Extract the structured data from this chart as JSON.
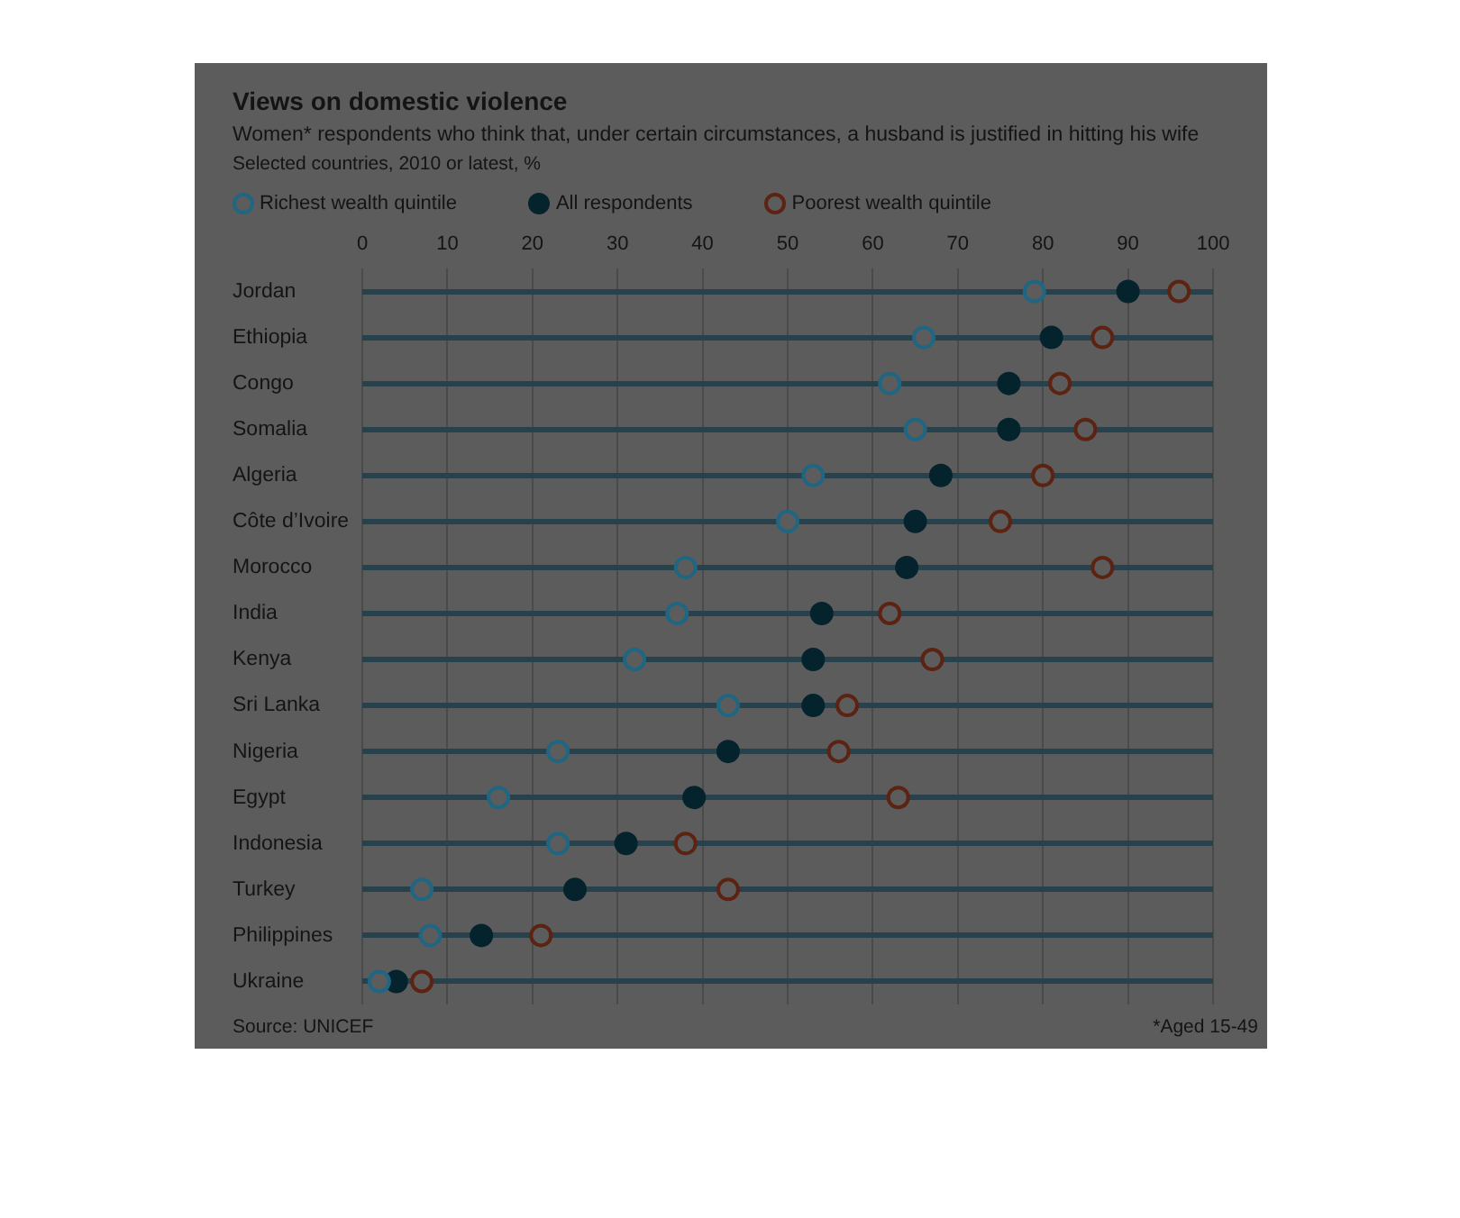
{
  "chart_data": {
    "type": "scatter",
    "orientation": "horizontal",
    "title": "Views on domestic violence",
    "subtitle": "Women* respondents who think that, under certain circumstances, a husband is justified in hitting his wife\nSelected countries, 2010 or latest, %",
    "categories": [
      "Jordan",
      "Ethiopia",
      "Congo",
      "Somalia",
      "Algeria",
      "Côte d’Ivoire",
      "Morocco",
      "India",
      "Kenya",
      "Sri Lanka",
      "Nigeria",
      "Egypt",
      "Indonesia",
      "Turkey",
      "Philippines",
      "Ukraine"
    ],
    "series": [
      {
        "name": "Richest wealth quintile",
        "color": "#1f6682",
        "values": [
          79,
          66,
          62,
          65,
          53,
          50,
          38,
          37,
          32,
          43,
          23,
          16,
          23,
          7,
          8,
          2
        ]
      },
      {
        "name": "All respondents",
        "color": "#04232c",
        "values": [
          90,
          81,
          76,
          76,
          68,
          65,
          64,
          54,
          53,
          53,
          43,
          39,
          31,
          25,
          14,
          4
        ]
      },
      {
        "name": "Poorest wealth quintile",
        "color": "#5c2212",
        "values": [
          96,
          87,
          82,
          85,
          80,
          75,
          87,
          62,
          67,
          57,
          56,
          63,
          38,
          43,
          21,
          7
        ]
      }
    ],
    "xlim": [
      0,
      100
    ],
    "xticks": [
      0,
      10,
      20,
      30,
      40,
      50,
      60,
      70,
      80,
      90,
      100
    ],
    "grid": true,
    "legend": "top",
    "marker": "circle",
    "annotations": [
      "Source: UNICEF",
      "*Aged 15-49"
    ]
  }
}
